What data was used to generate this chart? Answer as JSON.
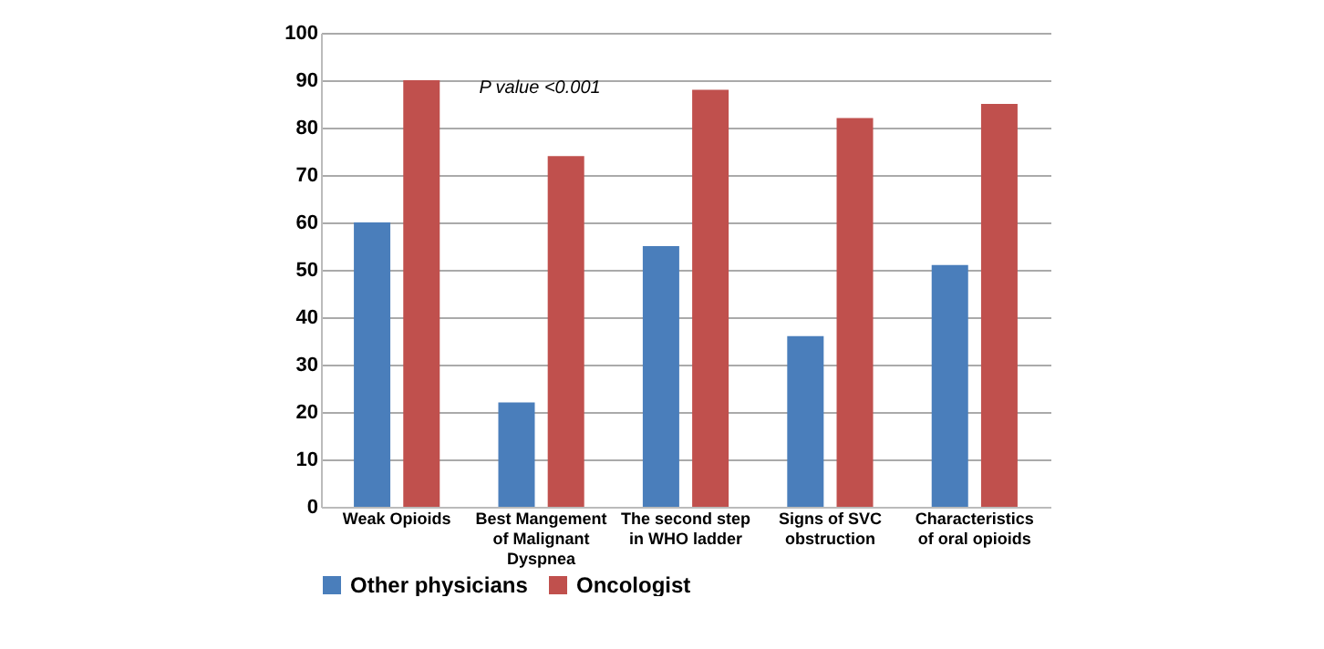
{
  "chart_data": {
    "type": "bar",
    "categories": [
      "Weak Opioids",
      "Best Mangement of Malignant Dyspnea",
      "The second step in WHO ladder",
      "Signs of SVC obstruction",
      "Characteristics of oral opioids"
    ],
    "series": [
      {
        "name": "Other physicians",
        "color": "#4a7ebb",
        "values": [
          60,
          22,
          55,
          36,
          51
        ]
      },
      {
        "name": "Oncologist",
        "color": "#c0504d",
        "values": [
          90,
          74,
          88,
          82,
          85
        ]
      }
    ],
    "ylim": [
      0,
      100
    ],
    "yticks": [
      0,
      10,
      20,
      30,
      40,
      50,
      60,
      70,
      80,
      90,
      100
    ],
    "grid": "y",
    "legend": "bottom",
    "annotations": [
      "P value <0.001"
    ]
  }
}
